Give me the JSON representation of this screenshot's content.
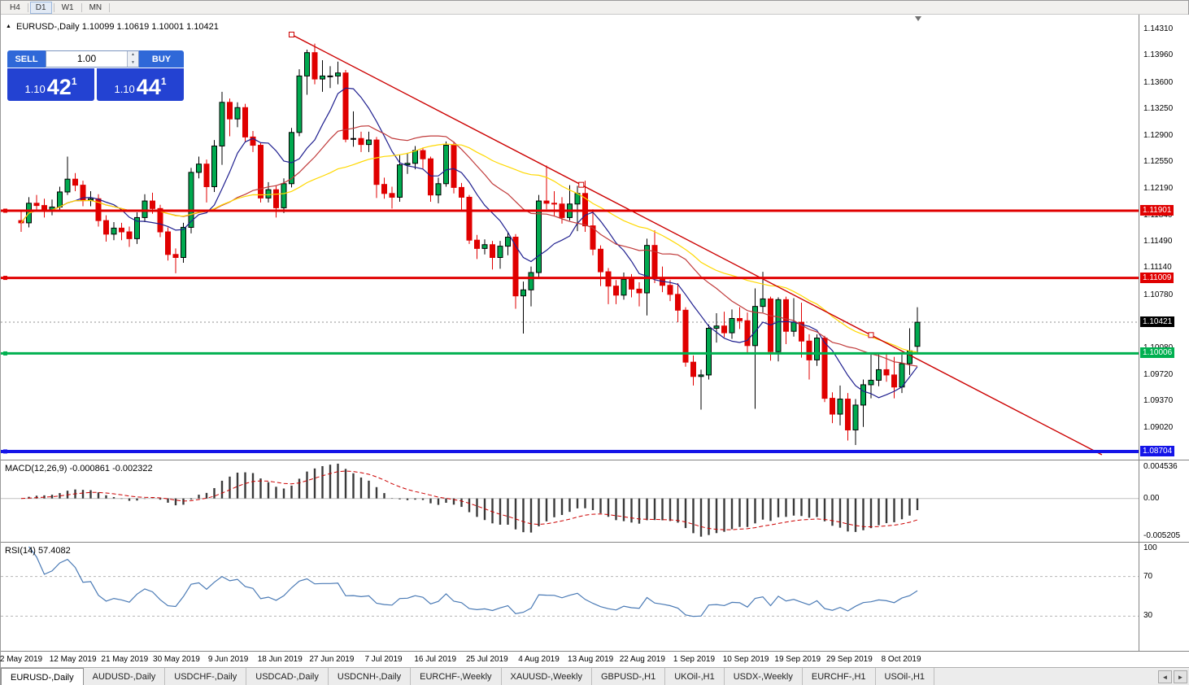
{
  "toolbar": {
    "timeframes": [
      "H4",
      "D1",
      "W1",
      "MN"
    ],
    "active": "D1"
  },
  "chart_header": {
    "symbol_title": "EURUSD-,Daily",
    "ohlc": "1.10099 1.10619 1.10001 1.10421"
  },
  "icons": {
    "symbol_triangle": "▲",
    "spin_up": "▲",
    "spin_down": "▼",
    "scroll_left": "◄",
    "scroll_right": "►"
  },
  "trade_panel": {
    "sell_label": "SELL",
    "buy_label": "BUY",
    "volume": "1.00",
    "sell_price": {
      "small": "1.10",
      "big": "42",
      "sup": "1"
    },
    "buy_price": {
      "small": "1.10",
      "big": "44",
      "sup": "1"
    }
  },
  "indicators": {
    "macd_label": "MACD(12,26,9) -0.000861 -0.002322",
    "rsi_label": "RSI(14) 57.4082"
  },
  "tab_bar": {
    "active_index": 0,
    "tabs": [
      "EURUSD-,Daily",
      "AUDUSD-,Daily",
      "USDCHF-,Daily",
      "USDCAD-,Daily",
      "USDCNH-,Daily",
      "EURCHF-,Weekly",
      "XAUUSD-,Weekly",
      "GBPUSD-,H1",
      "UKOil-,H1",
      "USDX-,Weekly",
      "EURCHF-,H1",
      "USOil-,H1"
    ]
  },
  "chart_data": {
    "type": "candlestick",
    "symbol": "EURUSD-",
    "timeframe": "Daily",
    "colors": {
      "up": "#00A94F",
      "up_outline": "#000000",
      "down": "#E00000",
      "ma_fast": "#1F1F8F",
      "ma_mid": "#C03A3A",
      "ma_slow": "#FFD800",
      "trendline": "#CC0000",
      "macd_hist": "#3A3A3A",
      "macd_signal": "#CC0000",
      "rsi_line": "#4A7AB5",
      "bid_line": "#909090"
    },
    "price_axis": {
      "anchor_value": 1.1431,
      "step_value": 0.0035,
      "ticks": [
        "1.14310",
        "1.13960",
        "1.13600",
        "1.13250",
        "1.12900",
        "1.12550",
        "1.12190",
        "1.11840",
        "1.11490",
        "1.11140",
        "1.10780",
        "1.10430",
        "1.10080",
        "1.09720",
        "1.09370",
        "1.09020",
        "1.08660"
      ]
    },
    "hlines": [
      {
        "price": 1.11901,
        "label": "1.11901",
        "color": "#E00000",
        "stroke_w": 3
      },
      {
        "price": 1.11009,
        "label": "1.11009",
        "color": "#E00000",
        "stroke_w": 3
      },
      {
        "price": 1.10006,
        "label": "1.10006",
        "color": "#00B050",
        "stroke_w": 3
      },
      {
        "price": 1.08704,
        "label": "1.08704",
        "color": "#1414E8",
        "stroke_w": 4
      }
    ],
    "bid": {
      "price": 1.10421,
      "label": "1.10421",
      "badge_color": "#000000"
    },
    "trendline": {
      "i1": 35,
      "p1": 1.1424,
      "i2": 110,
      "p2": 1.1025,
      "ray": true
    },
    "moving_averages": [
      {
        "period": 8,
        "color_key": "ma_fast"
      },
      {
        "period": 20,
        "color_key": "ma_mid"
      },
      {
        "period": 33,
        "color_key": "ma_slow"
      }
    ],
    "macd": {
      "params": [
        12,
        26,
        9
      ],
      "axis_labels": [
        "0.004536",
        "0.00",
        "-0.005205"
      ],
      "axis_top": 0.004536,
      "axis_bottom": -0.005205
    },
    "rsi": {
      "period": 14,
      "value": 57.4082,
      "levels": [
        70,
        30
      ],
      "axis_labels": [
        "100",
        "70",
        "30"
      ]
    },
    "date_labels": [
      {
        "text": "2 May 2019",
        "i": 0
      },
      {
        "text": "12 May 2019",
        "i": 6.7
      },
      {
        "text": "21 May 2019",
        "i": 13.4
      },
      {
        "text": "30 May 2019",
        "i": 20.1
      },
      {
        "text": "9 Jun 2019",
        "i": 26.8
      },
      {
        "text": "18 Jun 2019",
        "i": 33.5
      },
      {
        "text": "27 Jun 2019",
        "i": 40.2
      },
      {
        "text": "7 Jul 2019",
        "i": 46.9
      },
      {
        "text": "16 Jul 2019",
        "i": 53.6
      },
      {
        "text": "25 Jul 2019",
        "i": 60.3
      },
      {
        "text": "4 Aug 2019",
        "i": 67
      },
      {
        "text": "13 Aug 2019",
        "i": 73.7
      },
      {
        "text": "22 Aug 2019",
        "i": 80.4
      },
      {
        "text": "1 Sep 2019",
        "i": 87.1
      },
      {
        "text": "10 Sep 2019",
        "i": 93.8
      },
      {
        "text": "19 Sep 2019",
        "i": 100.5
      },
      {
        "text": "29 Sep 2019",
        "i": 107.2
      },
      {
        "text": "8 Oct 2019",
        "i": 113.9
      }
    ],
    "candles": [
      [
        1.1177,
        1.1189,
        1.1162,
        1.1174
      ],
      [
        1.1174,
        1.1208,
        1.1168,
        1.12
      ],
      [
        1.12,
        1.1211,
        1.1189,
        1.1197
      ],
      [
        1.1197,
        1.1206,
        1.1181,
        1.119
      ],
      [
        1.119,
        1.1205,
        1.1184,
        1.1195
      ],
      [
        1.1195,
        1.1222,
        1.119,
        1.1215
      ],
      [
        1.1215,
        1.1262,
        1.1211,
        1.1232
      ],
      [
        1.1232,
        1.124,
        1.1216,
        1.1224
      ],
      [
        1.1224,
        1.123,
        1.1196,
        1.1204
      ],
      [
        1.1204,
        1.1216,
        1.1196,
        1.1206
      ],
      [
        1.1206,
        1.1212,
        1.1169,
        1.1177
      ],
      [
        1.1177,
        1.1184,
        1.1149,
        1.1159
      ],
      [
        1.1159,
        1.1175,
        1.1151,
        1.1167
      ],
      [
        1.1167,
        1.1174,
        1.1151,
        1.1162
      ],
      [
        1.1162,
        1.1169,
        1.1142,
        1.1153
      ],
      [
        1.1153,
        1.1188,
        1.1146,
        1.1181
      ],
      [
        1.1181,
        1.1212,
        1.1175,
        1.1203
      ],
      [
        1.1203,
        1.1214,
        1.1186,
        1.1193
      ],
      [
        1.1193,
        1.1198,
        1.1155,
        1.1162
      ],
      [
        1.1162,
        1.1168,
        1.1124,
        1.1132
      ],
      [
        1.1132,
        1.114,
        1.1107,
        1.1128
      ],
      [
        1.1128,
        1.1174,
        1.1121,
        1.1168
      ],
      [
        1.1168,
        1.1247,
        1.116,
        1.1241
      ],
      [
        1.1241,
        1.1262,
        1.1233,
        1.1252
      ],
      [
        1.1252,
        1.1258,
        1.1201,
        1.1222
      ],
      [
        1.1222,
        1.1284,
        1.1215,
        1.1276
      ],
      [
        1.1276,
        1.1348,
        1.1251,
        1.1334
      ],
      [
        1.1334,
        1.1339,
        1.1289,
        1.1312
      ],
      [
        1.1312,
        1.1334,
        1.1301,
        1.1327
      ],
      [
        1.1327,
        1.1332,
        1.1282,
        1.1288
      ],
      [
        1.1288,
        1.1296,
        1.1268,
        1.1277
      ],
      [
        1.1277,
        1.128,
        1.1201,
        1.1207
      ],
      [
        1.1207,
        1.1228,
        1.1201,
        1.1218
      ],
      [
        1.1218,
        1.1224,
        1.1181,
        1.1194
      ],
      [
        1.1194,
        1.1233,
        1.1187,
        1.1226
      ],
      [
        1.1226,
        1.13,
        1.1221,
        1.1294
      ],
      [
        1.1294,
        1.1378,
        1.1289,
        1.1369
      ],
      [
        1.1369,
        1.1404,
        1.1344,
        1.14
      ],
      [
        1.14,
        1.1412,
        1.1358,
        1.1365
      ],
      [
        1.1365,
        1.139,
        1.1348,
        1.1369
      ],
      [
        1.1369,
        1.1382,
        1.1353,
        1.1369
      ],
      [
        1.1369,
        1.1388,
        1.1358,
        1.1373
      ],
      [
        1.1373,
        1.1377,
        1.1281,
        1.1285
      ],
      [
        1.1285,
        1.1322,
        1.1275,
        1.1286
      ],
      [
        1.1286,
        1.1295,
        1.1268,
        1.1278
      ],
      [
        1.1278,
        1.1295,
        1.1268,
        1.1284
      ],
      [
        1.1284,
        1.1288,
        1.1207,
        1.1225
      ],
      [
        1.1225,
        1.1234,
        1.1206,
        1.1213
      ],
      [
        1.1213,
        1.1222,
        1.1193,
        1.1208
      ],
      [
        1.1208,
        1.1264,
        1.1202,
        1.1251
      ],
      [
        1.1251,
        1.1267,
        1.1239,
        1.1253
      ],
      [
        1.1253,
        1.1276,
        1.1245,
        1.127
      ],
      [
        1.127,
        1.1274,
        1.1246,
        1.1259
      ],
      [
        1.1259,
        1.1262,
        1.1202,
        1.1211
      ],
      [
        1.1211,
        1.1234,
        1.12,
        1.1226
      ],
      [
        1.1226,
        1.1282,
        1.1222,
        1.1277
      ],
      [
        1.1277,
        1.1282,
        1.1213,
        1.1221
      ],
      [
        1.1221,
        1.1227,
        1.119,
        1.1208
      ],
      [
        1.1208,
        1.1211,
        1.1146,
        1.1151
      ],
      [
        1.1151,
        1.1158,
        1.1126,
        1.114
      ],
      [
        1.114,
        1.1152,
        1.1132,
        1.1145
      ],
      [
        1.1145,
        1.115,
        1.1112,
        1.1128
      ],
      [
        1.1128,
        1.115,
        1.1113,
        1.1143
      ],
      [
        1.1143,
        1.1162,
        1.1131,
        1.1155
      ],
      [
        1.1155,
        1.1159,
        1.106,
        1.1077
      ],
      [
        1.1077,
        1.1096,
        1.1027,
        1.1085
      ],
      [
        1.1085,
        1.1116,
        1.1063,
        1.1108
      ],
      [
        1.1108,
        1.1211,
        1.1101,
        1.1203
      ],
      [
        1.1203,
        1.125,
        1.1192,
        1.12
      ],
      [
        1.12,
        1.1216,
        1.1183,
        1.1199
      ],
      [
        1.1199,
        1.1208,
        1.1173,
        1.1181
      ],
      [
        1.1181,
        1.1224,
        1.1177,
        1.1199
      ],
      [
        1.1199,
        1.1223,
        1.1163,
        1.1213
      ],
      [
        1.1213,
        1.123,
        1.1162,
        1.117
      ],
      [
        1.117,
        1.1192,
        1.1131,
        1.1139
      ],
      [
        1.1139,
        1.1144,
        1.109,
        1.1109
      ],
      [
        1.1109,
        1.1114,
        1.1066,
        1.109
      ],
      [
        1.109,
        1.1098,
        1.1066,
        1.1078
      ],
      [
        1.1078,
        1.1108,
        1.1072,
        1.1099
      ],
      [
        1.1099,
        1.1106,
        1.1075,
        1.1086
      ],
      [
        1.1086,
        1.1095,
        1.1063,
        1.1081
      ],
      [
        1.1081,
        1.1153,
        1.1051,
        1.1144
      ],
      [
        1.1144,
        1.1164,
        1.1094,
        1.1101
      ],
      [
        1.1101,
        1.1116,
        1.1082,
        1.1091
      ],
      [
        1.1091,
        1.1098,
        1.107,
        1.1079
      ],
      [
        1.1079,
        1.1094,
        1.1042,
        1.1058
      ],
      [
        1.1058,
        1.1062,
        1.0983,
        1.0989
      ],
      [
        1.0989,
        1.0998,
        1.0958,
        1.097
      ],
      [
        1.097,
        1.0979,
        1.0926,
        1.0972
      ],
      [
        1.0972,
        1.1039,
        1.0966,
        1.1034
      ],
      [
        1.1034,
        1.1054,
        1.1015,
        1.1037
      ],
      [
        1.1037,
        1.1056,
        1.1022,
        1.1028
      ],
      [
        1.1028,
        1.1059,
        1.102,
        1.1047
      ],
      [
        1.1047,
        1.1062,
        1.1033,
        1.1044
      ],
      [
        1.1044,
        1.1055,
        1.1,
        1.1011
      ],
      [
        1.1011,
        1.1087,
        1.0927,
        1.1063
      ],
      [
        1.1063,
        1.1109,
        1.1055,
        1.1073
      ],
      [
        1.1073,
        1.1076,
        1.0991,
        1.1003
      ],
      [
        1.1003,
        1.1075,
        1.099,
        1.1072
      ],
      [
        1.1072,
        1.1076,
        1.1013,
        1.103
      ],
      [
        1.103,
        1.1074,
        1.1023,
        1.1042
      ],
      [
        1.1042,
        1.1068,
        1.0995,
        1.1017
      ],
      [
        1.1017,
        1.1026,
        1.0966,
        1.0992
      ],
      [
        1.0992,
        1.1026,
        1.0984,
        1.1021
      ],
      [
        1.1021,
        1.1024,
        1.0936,
        1.0941
      ],
      [
        1.0941,
        1.0949,
        1.0908,
        1.092
      ],
      [
        1.092,
        1.0958,
        1.0905,
        1.094
      ],
      [
        1.094,
        1.0948,
        1.0885,
        1.0899
      ],
      [
        1.0899,
        1.094,
        1.0879,
        1.0932
      ],
      [
        1.0932,
        1.0966,
        1.0903,
        1.0959
      ],
      [
        1.0959,
        1.0999,
        1.0941,
        1.0965
      ],
      [
        1.0965,
        1.0999,
        1.0957,
        1.0979
      ],
      [
        1.0979,
        1.1,
        1.0963,
        1.0972
      ],
      [
        1.0972,
        1.0996,
        1.0941,
        1.0956
      ],
      [
        1.0956,
        1.0999,
        1.0948,
        1.0987
      ],
      [
        1.0987,
        1.1034,
        1.0972,
        1.1004
      ],
      [
        1.101,
        1.1062,
        1.1,
        1.1042
      ]
    ]
  }
}
